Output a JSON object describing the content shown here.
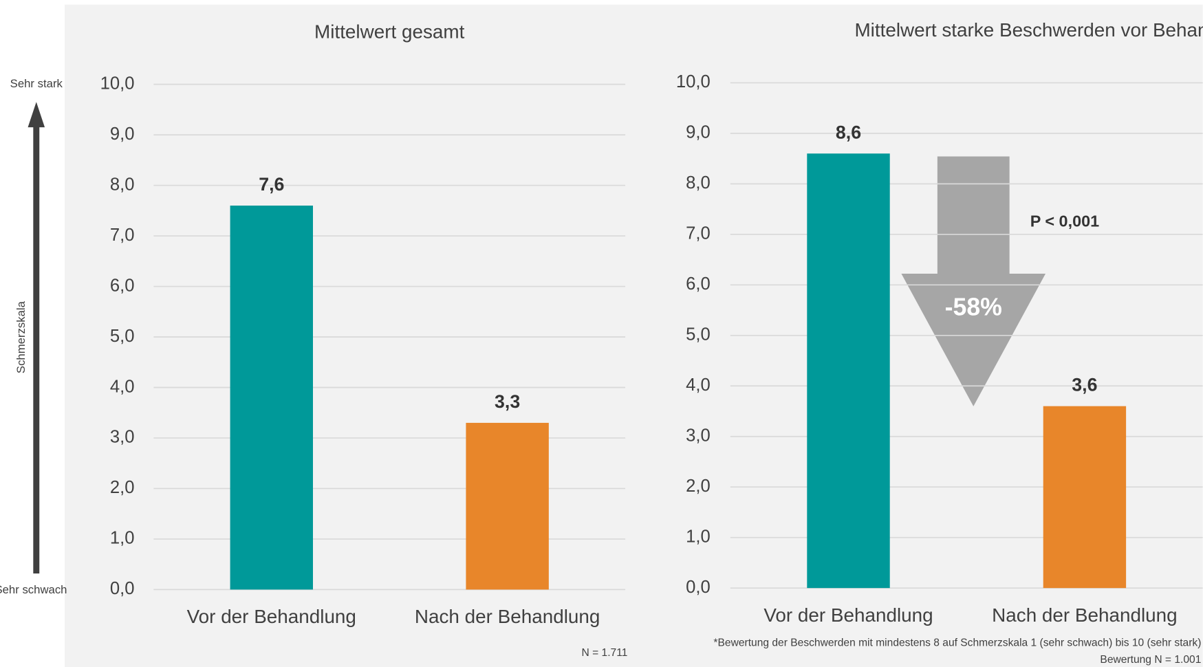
{
  "side_axis": {
    "top": "Sehr stark",
    "label": "Schmerzskala",
    "bottom": "Sehr schwach"
  },
  "chart_data": [
    {
      "type": "bar",
      "title": "Mittelwert gesamt",
      "categories": [
        "Vor der Behandlung",
        "Nach der Behandlung"
      ],
      "values": [
        7.6,
        3.3
      ],
      "value_labels": [
        "7,6",
        "3,3"
      ],
      "colors": [
        "#009999",
        "#e8862a"
      ],
      "ylim": [
        0,
        10
      ],
      "yticks": [
        {
          "value": 0,
          "label": "0,0"
        },
        {
          "value": 1,
          "label": "1,0"
        },
        {
          "value": 2,
          "label": "2,0"
        },
        {
          "value": 3,
          "label": "3,0"
        },
        {
          "value": 4,
          "label": "4,0"
        },
        {
          "value": 5,
          "label": "5,0"
        },
        {
          "value": 6,
          "label": "6,0"
        },
        {
          "value": 7,
          "label": "7,0"
        },
        {
          "value": 8,
          "label": "8,0"
        },
        {
          "value": 9,
          "label": "9,0"
        },
        {
          "value": 10,
          "label": "10,0"
        }
      ],
      "grid": true,
      "notes": [
        "N = 1.711"
      ]
    },
    {
      "type": "bar",
      "title": "Mittelwert starke Beschwerden vor Behandlung*",
      "categories": [
        "Vor der Behandlung",
        "Nach der Behandlung"
      ],
      "values": [
        8.6,
        3.6
      ],
      "value_labels": [
        "8,6",
        "3,6"
      ],
      "colors": [
        "#009999",
        "#e8862a"
      ],
      "ylim": [
        0,
        10
      ],
      "yticks": [
        {
          "value": 0,
          "label": "0,0"
        },
        {
          "value": 1,
          "label": "1,0"
        },
        {
          "value": 2,
          "label": "2,0"
        },
        {
          "value": 3,
          "label": "3,0"
        },
        {
          "value": 4,
          "label": "4,0"
        },
        {
          "value": 5,
          "label": "5,0"
        },
        {
          "value": 6,
          "label": "6,0"
        },
        {
          "value": 7,
          "label": "7,0"
        },
        {
          "value": 8,
          "label": "8,0"
        },
        {
          "value": 9,
          "label": "9,0"
        },
        {
          "value": 10,
          "label": "10,0"
        }
      ],
      "grid": true,
      "annotations": {
        "change": "-58%",
        "p_value": "P < 0,001"
      },
      "notes": [
        "*Bewertung der Beschwerden mit mindestens 8 auf Schmerzskala 1 (sehr schwach) bis 10 (sehr stark)",
        "Bewertung N = 1.001"
      ]
    }
  ]
}
